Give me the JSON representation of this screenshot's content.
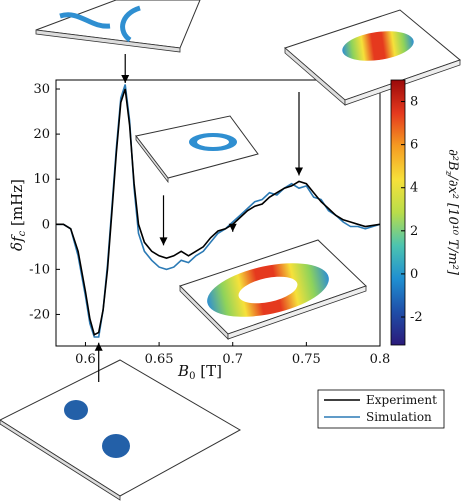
{
  "chart_data": {
    "type": "line",
    "xlabel": "B_0 [T]",
    "ylabel": "δf_c [mHz]",
    "xlim": [
      0.58,
      0.8
    ],
    "ylim": [
      -27,
      32
    ],
    "x_ticks": [
      "0.6",
      "0.65",
      "0.7",
      "0.75",
      "0.8"
    ],
    "y_ticks": [
      "-20",
      "-10",
      "0",
      "10",
      "20",
      "30"
    ],
    "legend_position": "bottom-right (outside)",
    "series": [
      {
        "name": "Experiment",
        "color": "#000000",
        "x": [
          0.58,
          0.585,
          0.59,
          0.595,
          0.6,
          0.603,
          0.606,
          0.609,
          0.612,
          0.615,
          0.618,
          0.621,
          0.624,
          0.627,
          0.63,
          0.633,
          0.636,
          0.64,
          0.645,
          0.65,
          0.655,
          0.66,
          0.665,
          0.67,
          0.675,
          0.68,
          0.685,
          0.69,
          0.695,
          0.7,
          0.705,
          0.71,
          0.715,
          0.72,
          0.725,
          0.73,
          0.735,
          0.74,
          0.745,
          0.75,
          0.755,
          0.76,
          0.765,
          0.77,
          0.775,
          0.78,
          0.785,
          0.79,
          0.8
        ],
        "y": [
          0,
          0,
          -1,
          -6,
          -15,
          -21,
          -24.5,
          -24,
          -19,
          -10,
          3,
          16,
          27,
          30,
          22,
          9,
          0,
          -4,
          -6,
          -7,
          -7.5,
          -7,
          -6,
          -7,
          -6,
          -5,
          -3,
          -1.5,
          -1,
          0,
          1.5,
          3,
          4,
          4.5,
          6,
          7,
          8,
          8.5,
          9.5,
          9,
          7,
          5,
          3.5,
          2,
          1,
          0.5,
          0,
          -0.5,
          0
        ]
      },
      {
        "name": "Simulation",
        "color": "#2b7ab5",
        "x": [
          0.58,
          0.585,
          0.59,
          0.595,
          0.6,
          0.603,
          0.606,
          0.609,
          0.612,
          0.615,
          0.618,
          0.621,
          0.624,
          0.627,
          0.63,
          0.633,
          0.636,
          0.64,
          0.645,
          0.65,
          0.655,
          0.66,
          0.665,
          0.67,
          0.675,
          0.68,
          0.685,
          0.69,
          0.695,
          0.7,
          0.705,
          0.71,
          0.715,
          0.72,
          0.725,
          0.73,
          0.735,
          0.74,
          0.745,
          0.75,
          0.755,
          0.76,
          0.765,
          0.77,
          0.775,
          0.78,
          0.785,
          0.79,
          0.8
        ],
        "y": [
          0,
          0,
          -1,
          -7,
          -16,
          -22,
          -25,
          -25,
          -19,
          -9,
          4,
          17,
          28,
          31,
          23,
          8,
          -2,
          -6,
          -8,
          -9.5,
          -10,
          -9.5,
          -8,
          -8.5,
          -7,
          -6,
          -4,
          -2,
          -1,
          0.5,
          2,
          3.5,
          5,
          5.5,
          7,
          6.5,
          8,
          9,
          8,
          8.5,
          6,
          5.5,
          3,
          2,
          0.5,
          -0.5,
          -0.5,
          -1,
          0
        ]
      }
    ],
    "arrows": [
      {
        "x": 0.627,
        "y": 30
      },
      {
        "x": 0.653,
        "y": -6
      },
      {
        "x": 0.7,
        "y": -3
      },
      {
        "x": 0.745,
        "y": 9.5
      },
      {
        "x": 0.609,
        "y": -24.5
      }
    ]
  },
  "colorbar": {
    "label": "∂²B_z/∂x² [10¹⁰ T/m²]",
    "range": [
      -3.3,
      9
    ],
    "ticks": [
      "8",
      "6",
      "4",
      "2",
      "0",
      "-2"
    ],
    "colors": [
      "#2b1a7a",
      "#1f4ea8",
      "#1f8fd1",
      "#4cc4b0",
      "#b9dd4a",
      "#f7e03a",
      "#f59c22",
      "#e5391e",
      "#9b0a0a"
    ]
  },
  "legend": {
    "experiment_label": "Experiment",
    "simulation_label": "Simulation"
  }
}
